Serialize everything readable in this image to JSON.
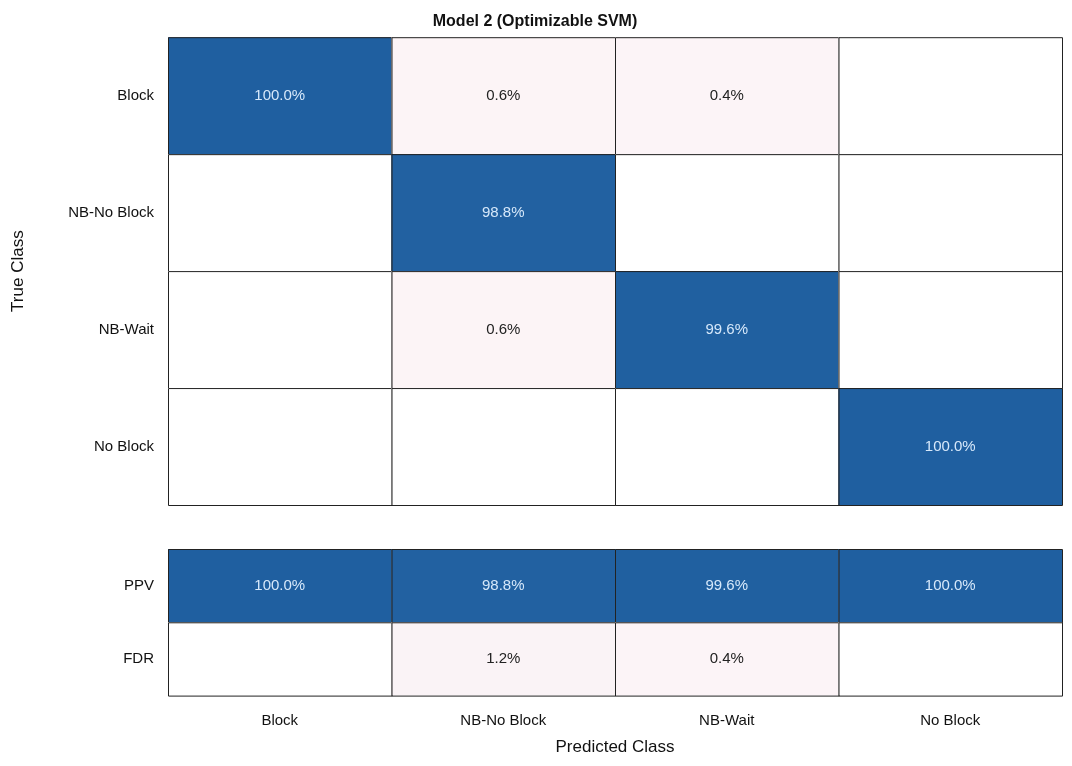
{
  "chart_data": [
    {
      "type": "heatmap",
      "title": "Model 2 (Optimizable SVM)",
      "ylabel": "True Class",
      "tick_labels": "y",
      "categories": [
        null,
        null,
        null,
        null
      ],
      "y_categories": [
        "Block",
        "NB-No Block",
        "NB-Wait",
        "No Block"
      ],
      "cells": [
        [
          100.0,
          0.6,
          0.4,
          null
        ],
        [
          null,
          98.8,
          null,
          null
        ],
        [
          null,
          0.6,
          99.6,
          null
        ],
        [
          null,
          null,
          null,
          100.0
        ]
      ],
      "cell_labels": [
        [
          "100.0%",
          "0.6%",
          "0.4%",
          null
        ],
        [
          null,
          "98.8%",
          null,
          null
        ],
        [
          null,
          "0.6%",
          "99.6%",
          null
        ],
        [
          null,
          null,
          null,
          "100.0%"
        ]
      ]
    },
    {
      "type": "heatmap",
      "xlabel": "Predicted Class",
      "categories": [
        "Block",
        "NB-No Block",
        "NB-Wait",
        "No Block"
      ],
      "y_categories": [
        "PPV",
        "FDR"
      ],
      "cells": [
        [
          100.0,
          98.8,
          99.6,
          100.0
        ],
        [
          null,
          1.2,
          0.4,
          null
        ]
      ],
      "cell_labels": [
        [
          "100.0%",
          "98.8%",
          "99.6%",
          "100.0%"
        ],
        [
          null,
          "1.2%",
          "0.4%",
          null
        ]
      ]
    }
  ]
}
